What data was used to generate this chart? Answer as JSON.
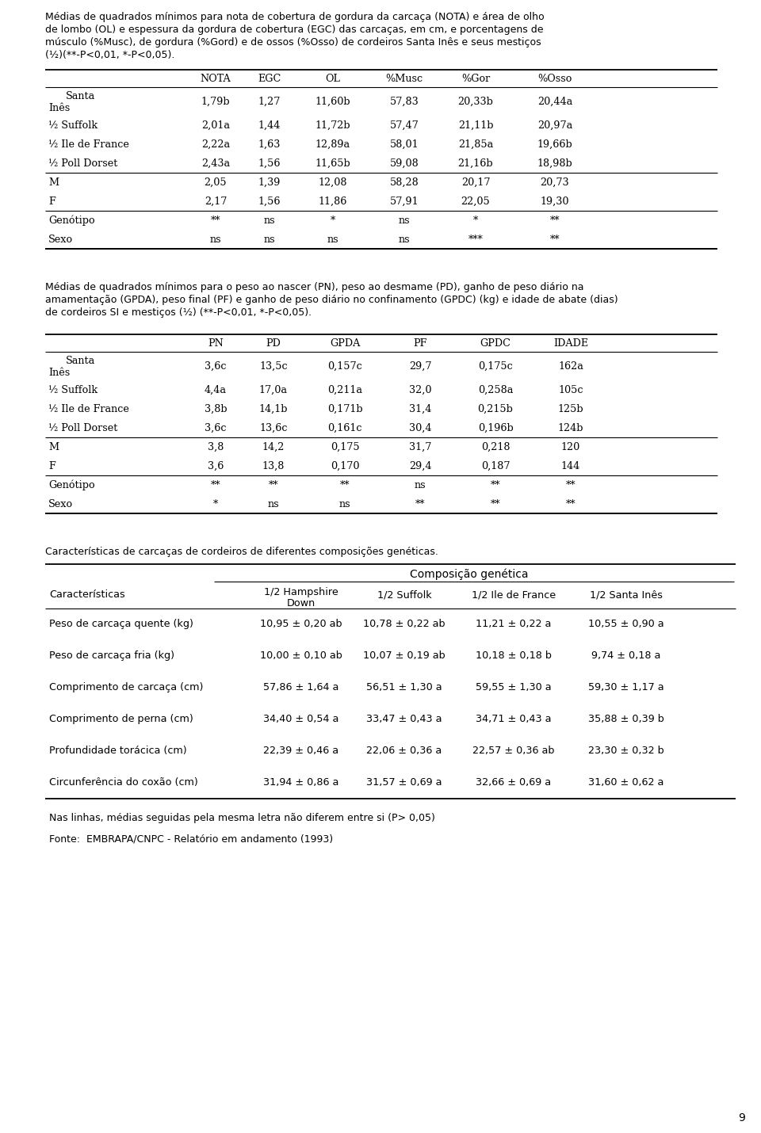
{
  "page_num": "9",
  "bg_color": "#ffffff",
  "text_color": "#000000",
  "table1_title": "Médias de quadrados mínimos para nota de cobertura de gordura da carcaça (NOTA) e área de olho\nde lombo (OL) e espessura da gordura de cobertura (EGC) das carcaças, em cm, e porcentagens de\nmúsculo (%Musc), de gordura (%Gord) e de ossos (%Osso) de cordeiros Santa Inês e seus mestiços\n(½)(**-P<0,01, *-P<0,05).",
  "table1_cols": [
    "",
    "NOTA",
    "EGC",
    "OL",
    "%Musc",
    "%Gor",
    "%Osso"
  ],
  "table1_rows": [
    [
      "Santa\nInês",
      "1,79b",
      "1,27",
      "11,60b",
      "57,83",
      "20,33b",
      "20,44a"
    ],
    [
      "½ Suffolk",
      "2,01a",
      "1,44",
      "11,72b",
      "57,47",
      "21,11b",
      "20,97a"
    ],
    [
      "½ Ile de France",
      "2,22a",
      "1,63",
      "12,89a",
      "58,01",
      "21,85a",
      "19,66b"
    ],
    [
      "½ Poll Dorset",
      "2,43a",
      "1,56",
      "11,65b",
      "59,08",
      "21,16b",
      "18,98b"
    ],
    [
      "M",
      "2,05",
      "1,39",
      "12,08",
      "58,28",
      "20,17",
      "20,73"
    ],
    [
      "F",
      "2,17",
      "1,56",
      "11,86",
      "57,91",
      "22,05",
      "19,30"
    ],
    [
      "Genótipo",
      "**",
      "ns",
      "*",
      "ns",
      "*",
      "**"
    ],
    [
      "Sexo",
      "ns",
      "ns",
      "ns",
      "ns",
      "***",
      "**"
    ]
  ],
  "table1_dividers_after": [
    3,
    5,
    7
  ],
  "table2_title": "Médias de quadrados mínimos para o peso ao nascer (PN), peso ao desmame (PD), ganho de peso diário na\namamentação (GPDA), peso final (PF) e ganho de peso diário no confinamento (GPDC) (kg) e idade de abate (dias)\nde cordeiros SI e mestiços (½) (**-P<0,01, *-P<0,05).",
  "table2_cols": [
    "",
    "PN",
    "PD",
    "GPDA",
    "PF",
    "GPDC",
    "IDADE"
  ],
  "table2_rows": [
    [
      "Santa\nInês",
      "3,6c",
      "13,5c",
      "0,157c",
      "29,7",
      "0,175c",
      "162a"
    ],
    [
      "½ Suffolk",
      "4,4a",
      "17,0a",
      "0,211a",
      "32,0",
      "0,258a",
      "105c"
    ],
    [
      "½ Ile de France",
      "3,8b",
      "14,1b",
      "0,171b",
      "31,4",
      "0,215b",
      "125b"
    ],
    [
      "½ Poll Dorset",
      "3,6c",
      "13,6c",
      "0,161c",
      "30,4",
      "0,196b",
      "124b"
    ],
    [
      "M",
      "3,8",
      "14,2",
      "0,175",
      "31,7",
      "0,218",
      "120"
    ],
    [
      "F",
      "3,6",
      "13,8",
      "0,170",
      "29,4",
      "0,187",
      "144"
    ],
    [
      "Genótipo",
      "**",
      "**",
      "**",
      "ns",
      "**",
      "**"
    ],
    [
      "Sexo",
      "*",
      "ns",
      "ns",
      "**",
      "**",
      "**"
    ]
  ],
  "table2_dividers_after": [
    3,
    5,
    7
  ],
  "table3_title": "Características de carcaças de cordeiros de diferentes composições genéticas.",
  "table3_main_header": "Composição genética",
  "table3_col0": "Características",
  "table3_subcols": [
    "1/2 Hampshire\nDown",
    "1/2 Suffolk",
    "1/2 Ile de France",
    "1/2 Santa Inês"
  ],
  "table3_rows": [
    [
      "Peso de carcaça quente (kg)",
      "10,95 ± 0,20 ab",
      "10,78 ± 0,22 ab",
      "11,21 ± 0,22 a",
      "10,55 ± 0,90 a"
    ],
    [
      "Peso de carcaça fria (kg)",
      "10,00 ± 0,10 ab",
      "10,07 ± 0,19 ab",
      "10,18 ± 0,18 b",
      "9,74 ± 0,18 a"
    ],
    [
      "Comprimento de carcaça (cm)",
      "57,86 ± 1,64 a",
      "56,51 ± 1,30 a",
      "59,55 ± 1,30 a",
      "59,30 ± 1,17 a"
    ],
    [
      "Comprimento de perna (cm)",
      "34,40 ± 0,54 a",
      "33,47 ± 0,43 a",
      "34,71 ± 0,43 a",
      "35,88 ± 0,39 b"
    ],
    [
      "Profundidade torácica (cm)",
      "22,39 ± 0,46 a",
      "22,06 ± 0,36 a",
      "22,57 ± 0,36 ab",
      "23,30 ± 0,32 b"
    ],
    [
      "Circunferência do coxão (cm)",
      "31,94 ± 0,86 a",
      "31,57 ± 0,69 a",
      "32,66 ± 0,69 a",
      "31,60 ± 0,62 a"
    ]
  ],
  "footnote1": "Nas linhas, médias seguidas pela mesma letra não diferem entre si (P> 0,05)",
  "footnote2": "Fonte:  EMBRAPA/CNPC - Relatório em andamento (1993)"
}
